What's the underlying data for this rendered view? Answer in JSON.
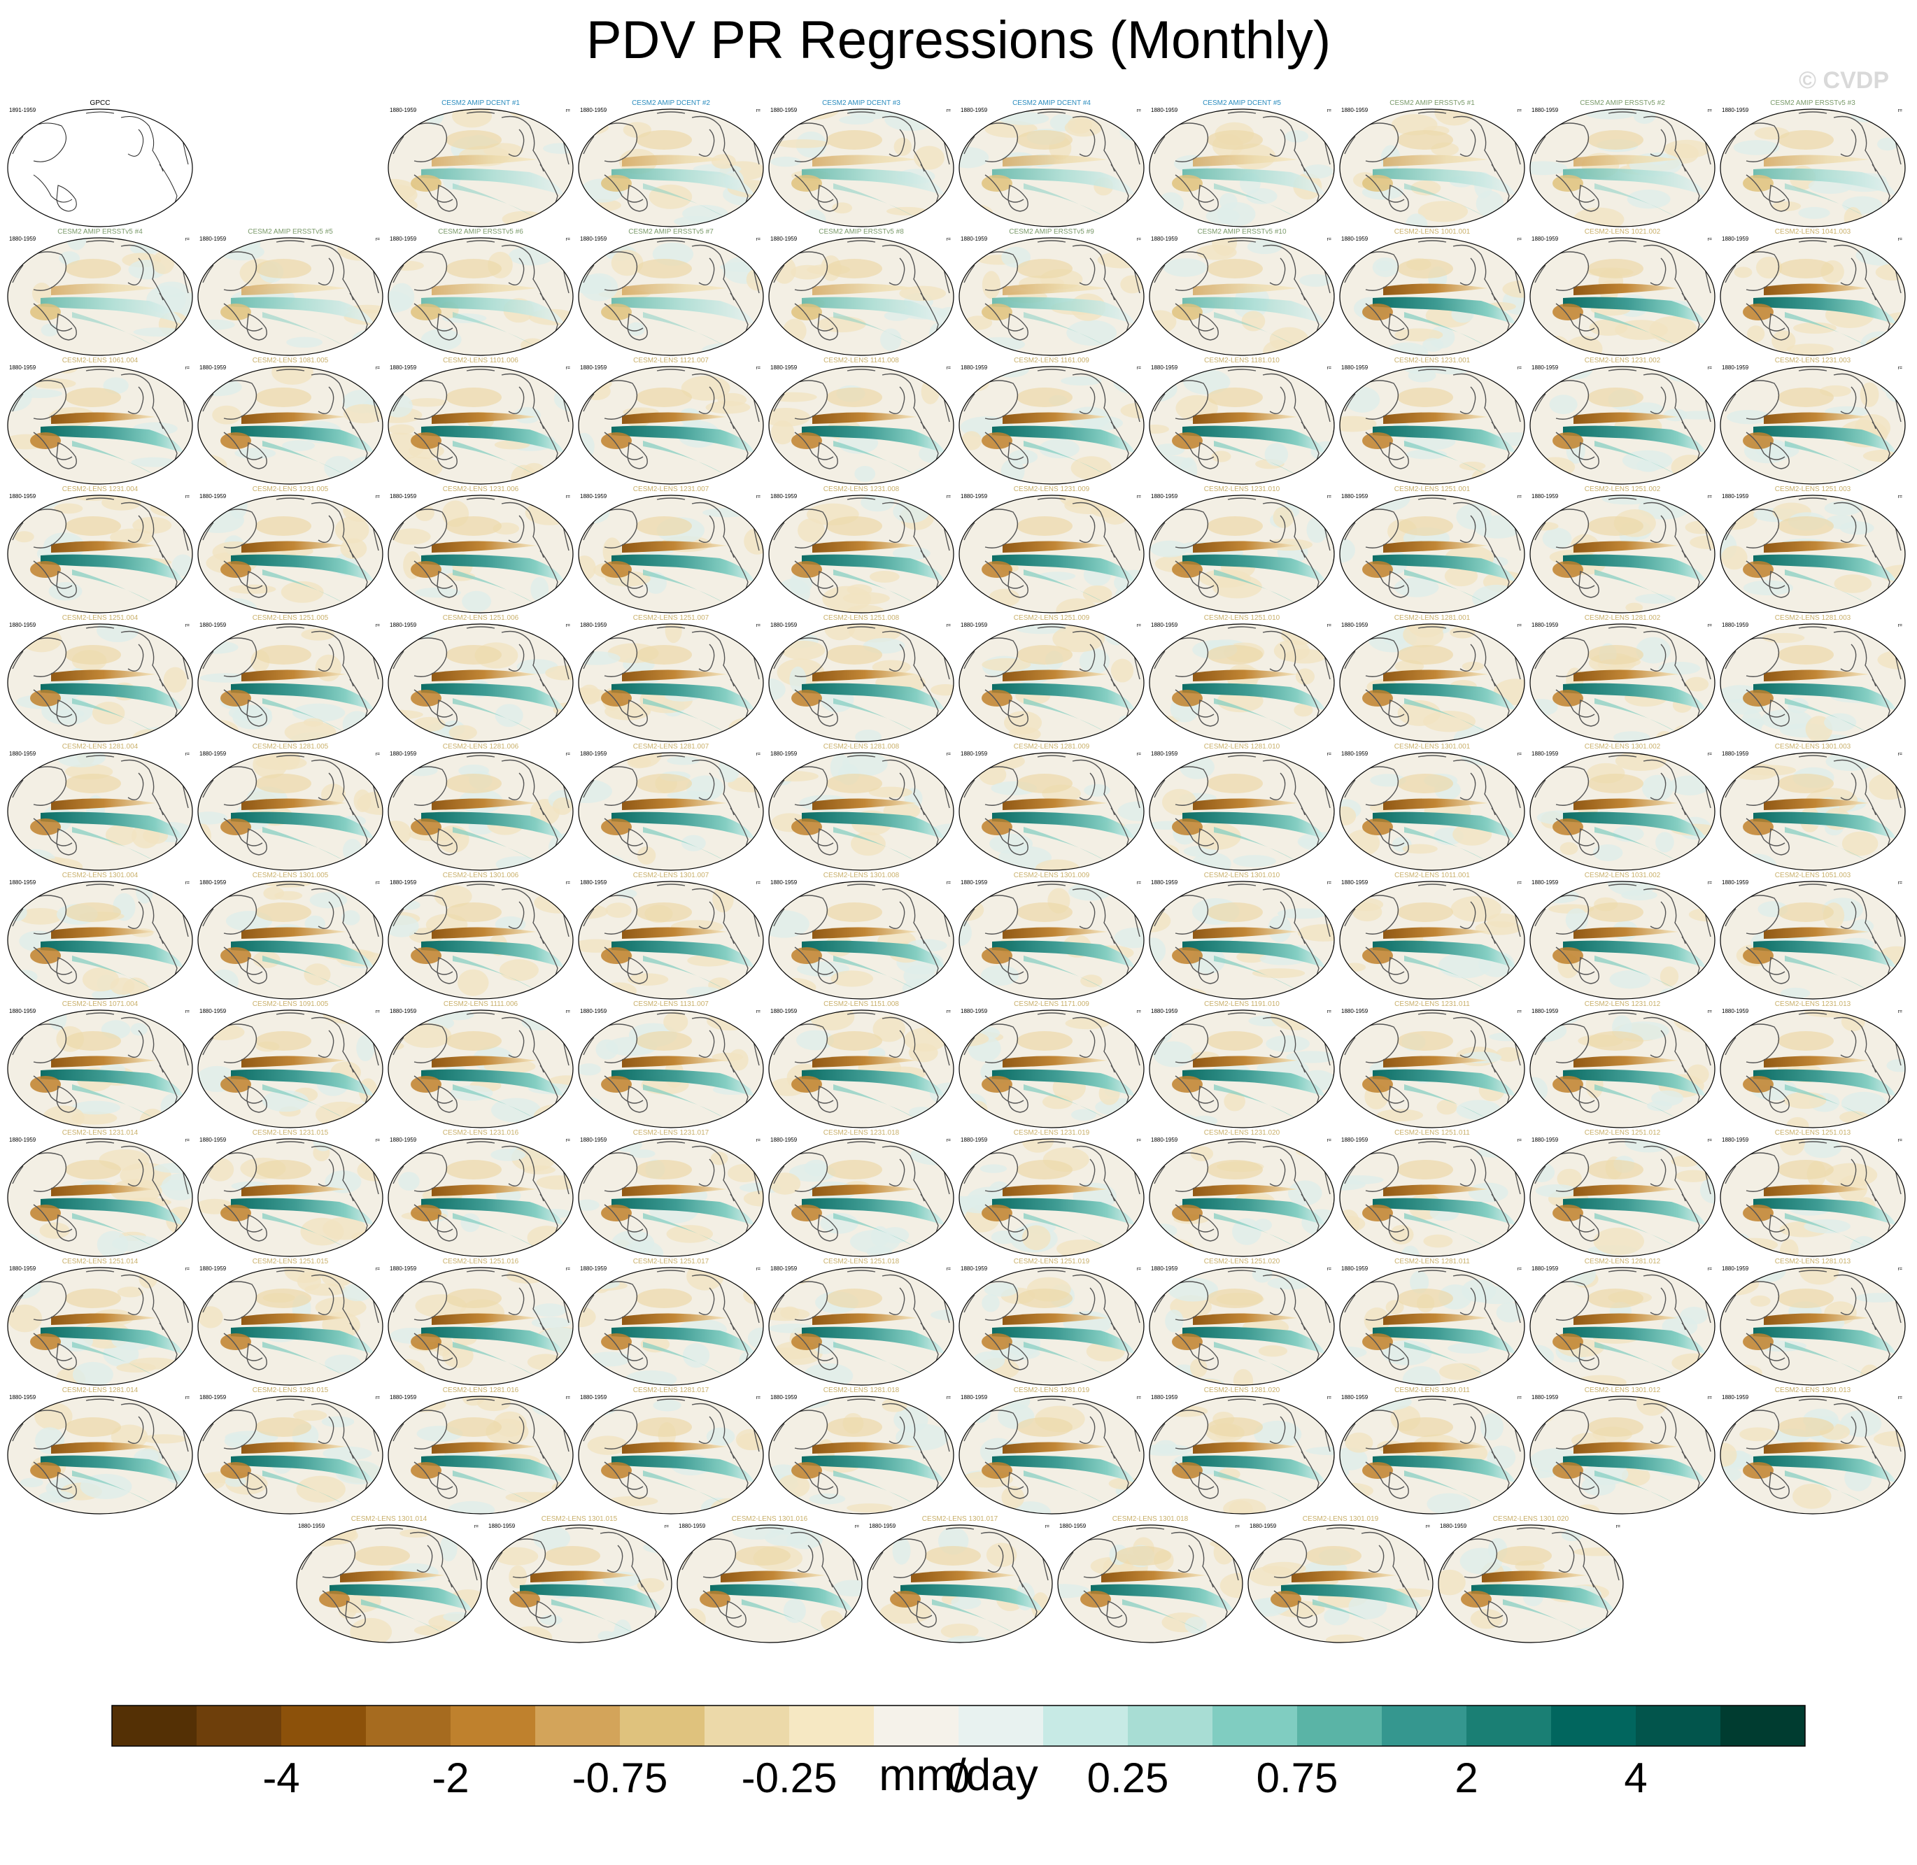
{
  "title": "PDV PR Regressions (Monthly)",
  "credit": "© CVDP",
  "period_obs": "1891-1959",
  "period_model": "1880-1959",
  "corner_tag": "r=",
  "panels": [
    {
      "label": "GPCC",
      "group": "obs"
    },
    {
      "label": "CESM2 AMIP DCENT #1",
      "group": "dcent"
    },
    {
      "label": "CESM2 AMIP DCENT #2",
      "group": "dcent"
    },
    {
      "label": "CESM2 AMIP DCENT #3",
      "group": "dcent"
    },
    {
      "label": "CESM2 AMIP DCENT #4",
      "group": "dcent"
    },
    {
      "label": "CESM2 AMIP DCENT #5",
      "group": "dcent"
    },
    {
      "label": "CESM2 AMIP ERSSTv5 #1",
      "group": "ersst"
    },
    {
      "label": "CESM2 AMIP ERSSTv5 #2",
      "group": "ersst"
    },
    {
      "label": "CESM2 AMIP ERSSTv5 #3",
      "group": "ersst"
    },
    {
      "label": "CESM2 AMIP ERSSTv5 #4",
      "group": "ersst"
    },
    {
      "label": "CESM2 AMIP ERSSTv5 #5",
      "group": "ersst"
    },
    {
      "label": "CESM2 AMIP ERSSTv5 #6",
      "group": "ersst"
    },
    {
      "label": "CESM2 AMIP ERSSTv5 #7",
      "group": "ersst"
    },
    {
      "label": "CESM2 AMIP ERSSTv5 #8",
      "group": "ersst"
    },
    {
      "label": "CESM2 AMIP ERSSTv5 #9",
      "group": "ersst"
    },
    {
      "label": "CESM2 AMIP ERSSTv5 #10",
      "group": "ersst"
    },
    {
      "label": "CESM2-LENS 1001.001",
      "group": "lens"
    },
    {
      "label": "CESM2-LENS 1021.002",
      "group": "lens"
    },
    {
      "label": "CESM2-LENS 1041.003",
      "group": "lens"
    },
    {
      "label": "CESM2-LENS 1061.004",
      "group": "lens"
    },
    {
      "label": "CESM2-LENS 1081.005",
      "group": "lens"
    },
    {
      "label": "CESM2-LENS 1101.006",
      "group": "lens"
    },
    {
      "label": "CESM2-LENS 1121.007",
      "group": "lens"
    },
    {
      "label": "CESM2-LENS 1141.008",
      "group": "lens"
    },
    {
      "label": "CESM2-LENS 1161.009",
      "group": "lens"
    },
    {
      "label": "CESM2-LENS 1181.010",
      "group": "lens"
    },
    {
      "label": "CESM2-LENS 1231.001",
      "group": "lens"
    },
    {
      "label": "CESM2-LENS 1231.002",
      "group": "lens"
    },
    {
      "label": "CESM2-LENS 1231.003",
      "group": "lens"
    },
    {
      "label": "CESM2-LENS 1231.004",
      "group": "lens"
    },
    {
      "label": "CESM2-LENS 1231.005",
      "group": "lens"
    },
    {
      "label": "CESM2-LENS 1231.006",
      "group": "lens"
    },
    {
      "label": "CESM2-LENS 1231.007",
      "group": "lens"
    },
    {
      "label": "CESM2-LENS 1231.008",
      "group": "lens"
    },
    {
      "label": "CESM2-LENS 1231.009",
      "group": "lens"
    },
    {
      "label": "CESM2-LENS 1231.010",
      "group": "lens"
    },
    {
      "label": "CESM2-LENS 1251.001",
      "group": "lens"
    },
    {
      "label": "CESM2-LENS 1251.002",
      "group": "lens"
    },
    {
      "label": "CESM2-LENS 1251.003",
      "group": "lens"
    },
    {
      "label": "CESM2-LENS 1251.004",
      "group": "lens"
    },
    {
      "label": "CESM2-LENS 1251.005",
      "group": "lens"
    },
    {
      "label": "CESM2-LENS 1251.006",
      "group": "lens"
    },
    {
      "label": "CESM2-LENS 1251.007",
      "group": "lens"
    },
    {
      "label": "CESM2-LENS 1251.008",
      "group": "lens"
    },
    {
      "label": "CESM2-LENS 1251.009",
      "group": "lens"
    },
    {
      "label": "CESM2-LENS 1251.010",
      "group": "lens"
    },
    {
      "label": "CESM2-LENS 1281.001",
      "group": "lens"
    },
    {
      "label": "CESM2-LENS 1281.002",
      "group": "lens"
    },
    {
      "label": "CESM2-LENS 1281.003",
      "group": "lens"
    },
    {
      "label": "CESM2-LENS 1281.004",
      "group": "lens"
    },
    {
      "label": "CESM2-LENS 1281.005",
      "group": "lens"
    },
    {
      "label": "CESM2-LENS 1281.006",
      "group": "lens"
    },
    {
      "label": "CESM2-LENS 1281.007",
      "group": "lens"
    },
    {
      "label": "CESM2-LENS 1281.008",
      "group": "lens"
    },
    {
      "label": "CESM2-LENS 1281.009",
      "group": "lens"
    },
    {
      "label": "CESM2-LENS 1281.010",
      "group": "lens"
    },
    {
      "label": "CESM2-LENS 1301.001",
      "group": "lens"
    },
    {
      "label": "CESM2-LENS 1301.002",
      "group": "lens"
    },
    {
      "label": "CESM2-LENS 1301.003",
      "group": "lens"
    },
    {
      "label": "CESM2-LENS 1301.004",
      "group": "lens"
    },
    {
      "label": "CESM2-LENS 1301.005",
      "group": "lens"
    },
    {
      "label": "CESM2-LENS 1301.006",
      "group": "lens"
    },
    {
      "label": "CESM2-LENS 1301.007",
      "group": "lens"
    },
    {
      "label": "CESM2-LENS 1301.008",
      "group": "lens"
    },
    {
      "label": "CESM2-LENS 1301.009",
      "group": "lens"
    },
    {
      "label": "CESM2-LENS 1301.010",
      "group": "lens"
    },
    {
      "label": "CESM2-LENS 1011.001",
      "group": "lens"
    },
    {
      "label": "CESM2-LENS 1031.002",
      "group": "lens"
    },
    {
      "label": "CESM2-LENS 1051.003",
      "group": "lens"
    },
    {
      "label": "CESM2-LENS 1071.004",
      "group": "lens"
    },
    {
      "label": "CESM2-LENS 1091.005",
      "group": "lens"
    },
    {
      "label": "CESM2-LENS 1111.006",
      "group": "lens"
    },
    {
      "label": "CESM2-LENS 1131.007",
      "group": "lens"
    },
    {
      "label": "CESM2-LENS 1151.008",
      "group": "lens"
    },
    {
      "label": "CESM2-LENS 1171.009",
      "group": "lens"
    },
    {
      "label": "CESM2-LENS 1191.010",
      "group": "lens"
    },
    {
      "label": "CESM2-LENS 1231.011",
      "group": "lens"
    },
    {
      "label": "CESM2-LENS 1231.012",
      "group": "lens"
    },
    {
      "label": "CESM2-LENS 1231.013",
      "group": "lens"
    },
    {
      "label": "CESM2-LENS 1231.014",
      "group": "lens"
    },
    {
      "label": "CESM2-LENS 1231.015",
      "group": "lens"
    },
    {
      "label": "CESM2-LENS 1231.016",
      "group": "lens"
    },
    {
      "label": "CESM2-LENS 1231.017",
      "group": "lens"
    },
    {
      "label": "CESM2-LENS 1231.018",
      "group": "lens"
    },
    {
      "label": "CESM2-LENS 1231.019",
      "group": "lens"
    },
    {
      "label": "CESM2-LENS 1231.020",
      "group": "lens"
    },
    {
      "label": "CESM2-LENS 1251.011",
      "group": "lens"
    },
    {
      "label": "CESM2-LENS 1251.012",
      "group": "lens"
    },
    {
      "label": "CESM2-LENS 1251.013",
      "group": "lens"
    },
    {
      "label": "CESM2-LENS 1251.014",
      "group": "lens"
    },
    {
      "label": "CESM2-LENS 1251.015",
      "group": "lens"
    },
    {
      "label": "CESM2-LENS 1251.016",
      "group": "lens"
    },
    {
      "label": "CESM2-LENS 1251.017",
      "group": "lens"
    },
    {
      "label": "CESM2-LENS 1251.018",
      "group": "lens"
    },
    {
      "label": "CESM2-LENS 1251.019",
      "group": "lens"
    },
    {
      "label": "CESM2-LENS 1251.020",
      "group": "lens"
    },
    {
      "label": "CESM2-LENS 1281.011",
      "group": "lens"
    },
    {
      "label": "CESM2-LENS 1281.012",
      "group": "lens"
    },
    {
      "label": "CESM2-LENS 1281.013",
      "group": "lens"
    },
    {
      "label": "CESM2-LENS 1281.014",
      "group": "lens"
    },
    {
      "label": "CESM2-LENS 1281.015",
      "group": "lens"
    },
    {
      "label": "CESM2-LENS 1281.016",
      "group": "lens"
    },
    {
      "label": "CESM2-LENS 1281.017",
      "group": "lens"
    },
    {
      "label": "CESM2-LENS 1281.018",
      "group": "lens"
    },
    {
      "label": "CESM2-LENS 1281.019",
      "group": "lens"
    },
    {
      "label": "CESM2-LENS 1281.020",
      "group": "lens"
    },
    {
      "label": "CESM2-LENS 1301.011",
      "group": "lens"
    },
    {
      "label": "CESM2-LENS 1301.012",
      "group": "lens"
    },
    {
      "label": "CESM2-LENS 1301.013",
      "group": "lens"
    },
    {
      "label": "CESM2-LENS 1301.014",
      "group": "lens"
    },
    {
      "label": "CESM2-LENS 1301.015",
      "group": "lens"
    },
    {
      "label": "CESM2-LENS 1301.016",
      "group": "lens"
    },
    {
      "label": "CESM2-LENS 1301.017",
      "group": "lens"
    },
    {
      "label": "CESM2-LENS 1301.018",
      "group": "lens"
    },
    {
      "label": "CESM2-LENS 1301.019",
      "group": "lens"
    },
    {
      "label": "CESM2-LENS 1301.020",
      "group": "lens"
    }
  ],
  "colors": {
    "dcent": "#2b8cbe",
    "ersst": "#7a9a6a",
    "lens": "#c9b06b",
    "obs": "#000000"
  },
  "chart_data": {
    "type": "heatmap",
    "title": "PDV PR Regressions (Monthly)",
    "description_of_marks": "Grid of global map panels (Hammer projection) of monthly precipitation regressed on the PDV index",
    "colorbar": {
      "unit": "mm/day",
      "tick_labels": [
        "-4",
        "-2",
        "-0.75",
        "-0.25",
        "0",
        "0.25",
        "0.75",
        "2",
        "4"
      ],
      "colors": [
        "#543005",
        "#6e3f0b",
        "#8c510a",
        "#a66b1f",
        "#bf812d",
        "#d3a45a",
        "#dfc27d",
        "#ecd9a9",
        "#f6e8c3",
        "#f5f2ea",
        "#e8f2f0",
        "#c7eae5",
        "#a8ddd4",
        "#80cdc1",
        "#5ab4a6",
        "#35978f",
        "#1a7f74",
        "#01665e",
        "#02554c",
        "#003c30"
      ]
    }
  }
}
